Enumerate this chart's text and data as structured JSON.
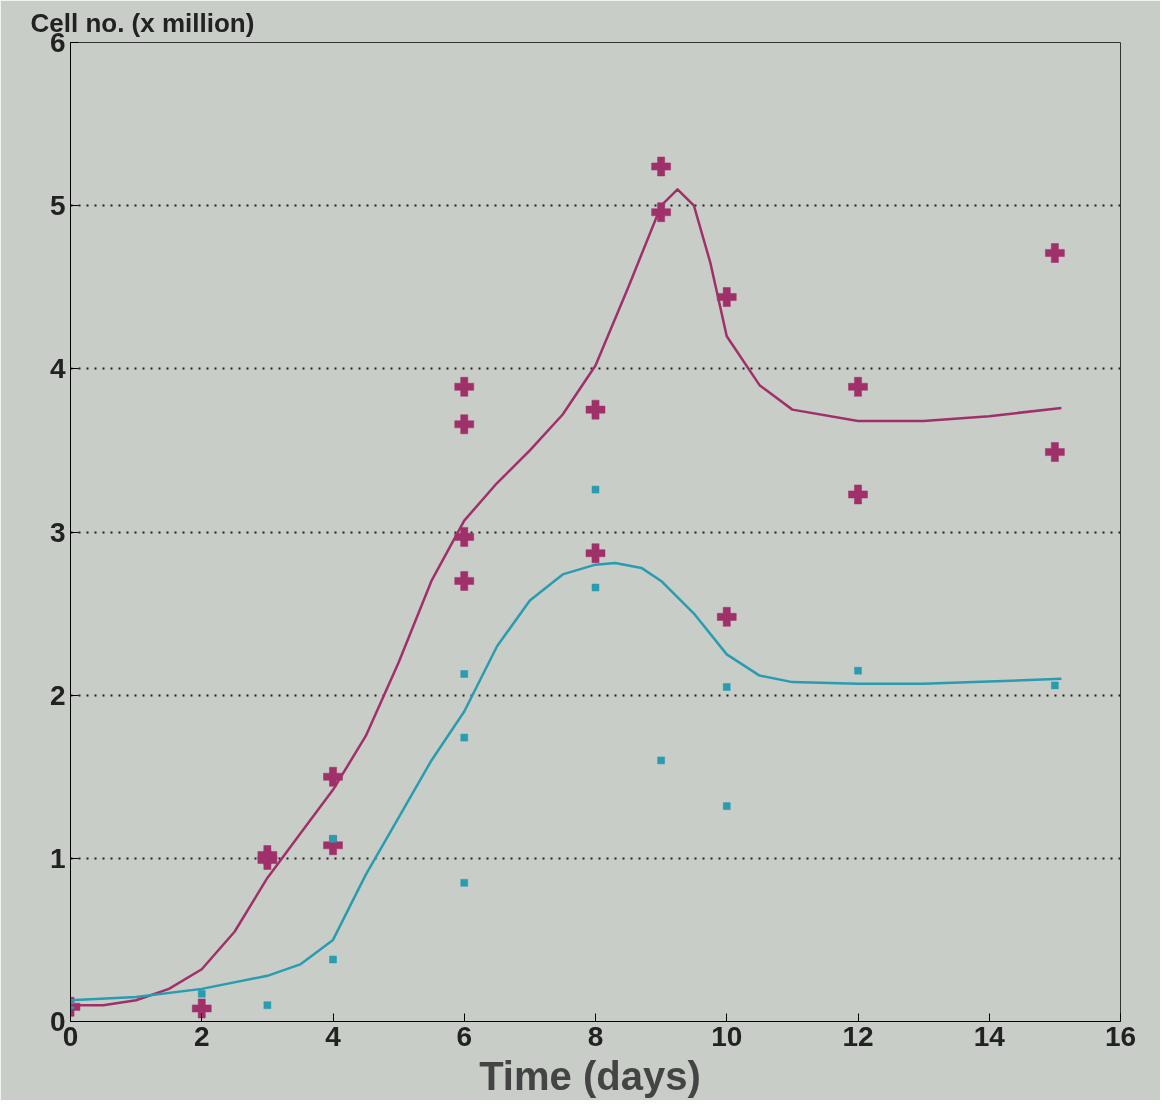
{
  "chart_data": {
    "type": "scatter",
    "ylabel": "Cell no. (x million)",
    "xlabel": "Time  (days)",
    "xlim": [
      0,
      16
    ],
    "xticks": [
      0,
      2,
      4,
      6,
      8,
      10,
      12,
      14,
      16
    ],
    "ylim": [
      0,
      6
    ],
    "yticks": [
      0,
      1,
      2,
      3,
      4,
      5,
      6
    ],
    "grid": "y",
    "series": [
      {
        "marker": "cross",
        "color": "#a0306a",
        "x": [
          0,
          2,
          3,
          3,
          4,
          4,
          6,
          6,
          6,
          6,
          8,
          8,
          9,
          9,
          10,
          10,
          12,
          12,
          15,
          15
        ],
        "values": [
          0.09,
          0.08,
          1.02,
          0.99,
          1.5,
          1.08,
          3.89,
          3.66,
          2.97,
          2.7,
          3.75,
          2.87,
          5.24,
          4.96,
          4.44,
          2.48,
          3.89,
          3.23,
          4.71,
          3.49
        ]
      },
      {
        "marker": "square",
        "color": "#2a9cb0",
        "x": [
          0,
          2,
          3,
          4,
          4,
          6,
          6,
          6,
          8,
          8,
          9,
          10,
          10,
          12,
          15
        ],
        "values": [
          0.1,
          0.17,
          0.1,
          1.12,
          0.38,
          2.13,
          1.74,
          0.85,
          3.26,
          2.66,
          1.6,
          2.05,
          1.32,
          2.15,
          2.06
        ]
      },
      {
        "type": "line",
        "line_style": "solid",
        "color": "#a0306a",
        "x": [
          0,
          0.5,
          1,
          1.5,
          2,
          2.5,
          3,
          3.5,
          4,
          4.5,
          5,
          5.5,
          6,
          6.5,
          7,
          7.5,
          8,
          8.5,
          9,
          9.25,
          9.5,
          9.75,
          10,
          10.5,
          11,
          12,
          13,
          14,
          15.1
        ],
        "values": [
          0.1,
          0.1,
          0.13,
          0.2,
          0.32,
          0.55,
          0.88,
          1.15,
          1.42,
          1.75,
          2.2,
          2.7,
          3.07,
          3.3,
          3.5,
          3.72,
          4.02,
          4.5,
          5.0,
          5.1,
          5.0,
          4.65,
          4.2,
          3.9,
          3.75,
          3.68,
          3.68,
          3.71,
          3.76
        ]
      },
      {
        "type": "line",
        "line_style": "solid",
        "color": "#2a9cb0",
        "x": [
          0,
          1,
          2,
          3,
          3.5,
          4,
          4.5,
          5,
          5.5,
          6,
          6.5,
          7,
          7.5,
          8,
          8.3,
          8.7,
          9,
          9.5,
          10,
          10.5,
          11,
          12,
          13,
          15.1
        ],
        "values": [
          0.13,
          0.15,
          0.2,
          0.28,
          0.35,
          0.5,
          0.9,
          1.25,
          1.6,
          1.9,
          2.3,
          2.58,
          2.74,
          2.8,
          2.81,
          2.78,
          2.7,
          2.5,
          2.25,
          2.12,
          2.08,
          2.07,
          2.07,
          2.1
        ]
      }
    ]
  }
}
